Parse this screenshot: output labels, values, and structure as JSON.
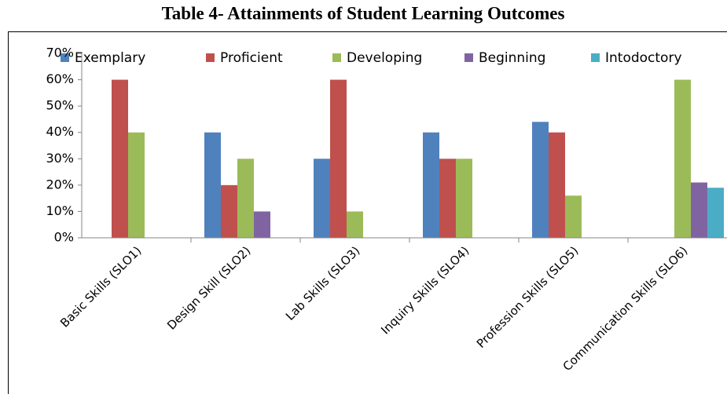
{
  "chart_data": {
    "type": "bar",
    "title": "Table 4- Attainments of Student Learning Outcomes",
    "categories": [
      "Basic Skills (SLO1)",
      "Design Skill (SLO2)",
      "Lab Skills (SLO3)",
      "Inquiry Skills (SLO4)",
      "Profession Skills (SLO5)",
      "Communication Skills (SLO6)"
    ],
    "series": [
      {
        "name": "Exemplary",
        "color": "#4f81bd",
        "values": [
          0,
          40,
          30,
          40,
          44,
          0
        ]
      },
      {
        "name": "Proficient",
        "color": "#c0504d",
        "values": [
          60,
          20,
          60,
          30,
          40,
          0
        ]
      },
      {
        "name": "Developing",
        "color": "#9bbb59",
        "values": [
          40,
          30,
          10,
          30,
          16,
          60
        ]
      },
      {
        "name": "Beginning",
        "color": "#8064a2",
        "values": [
          0,
          10,
          0,
          0,
          0,
          21
        ]
      },
      {
        "name": "Intodoctory",
        "color": "#4bacc6",
        "values": [
          0,
          0,
          0,
          0,
          0,
          19
        ]
      }
    ],
    "ylim": [
      0,
      70
    ],
    "yticks": [
      {
        "value": 0,
        "label": "0%"
      },
      {
        "value": 10,
        "label": "10%"
      },
      {
        "value": 20,
        "label": "20%"
      },
      {
        "value": 30,
        "label": "30%"
      },
      {
        "value": 40,
        "label": "40%"
      },
      {
        "value": 50,
        "label": "50%"
      },
      {
        "value": 60,
        "label": "60%"
      },
      {
        "value": 70,
        "label": "70%"
      }
    ],
    "legend": "top",
    "grid": false
  }
}
